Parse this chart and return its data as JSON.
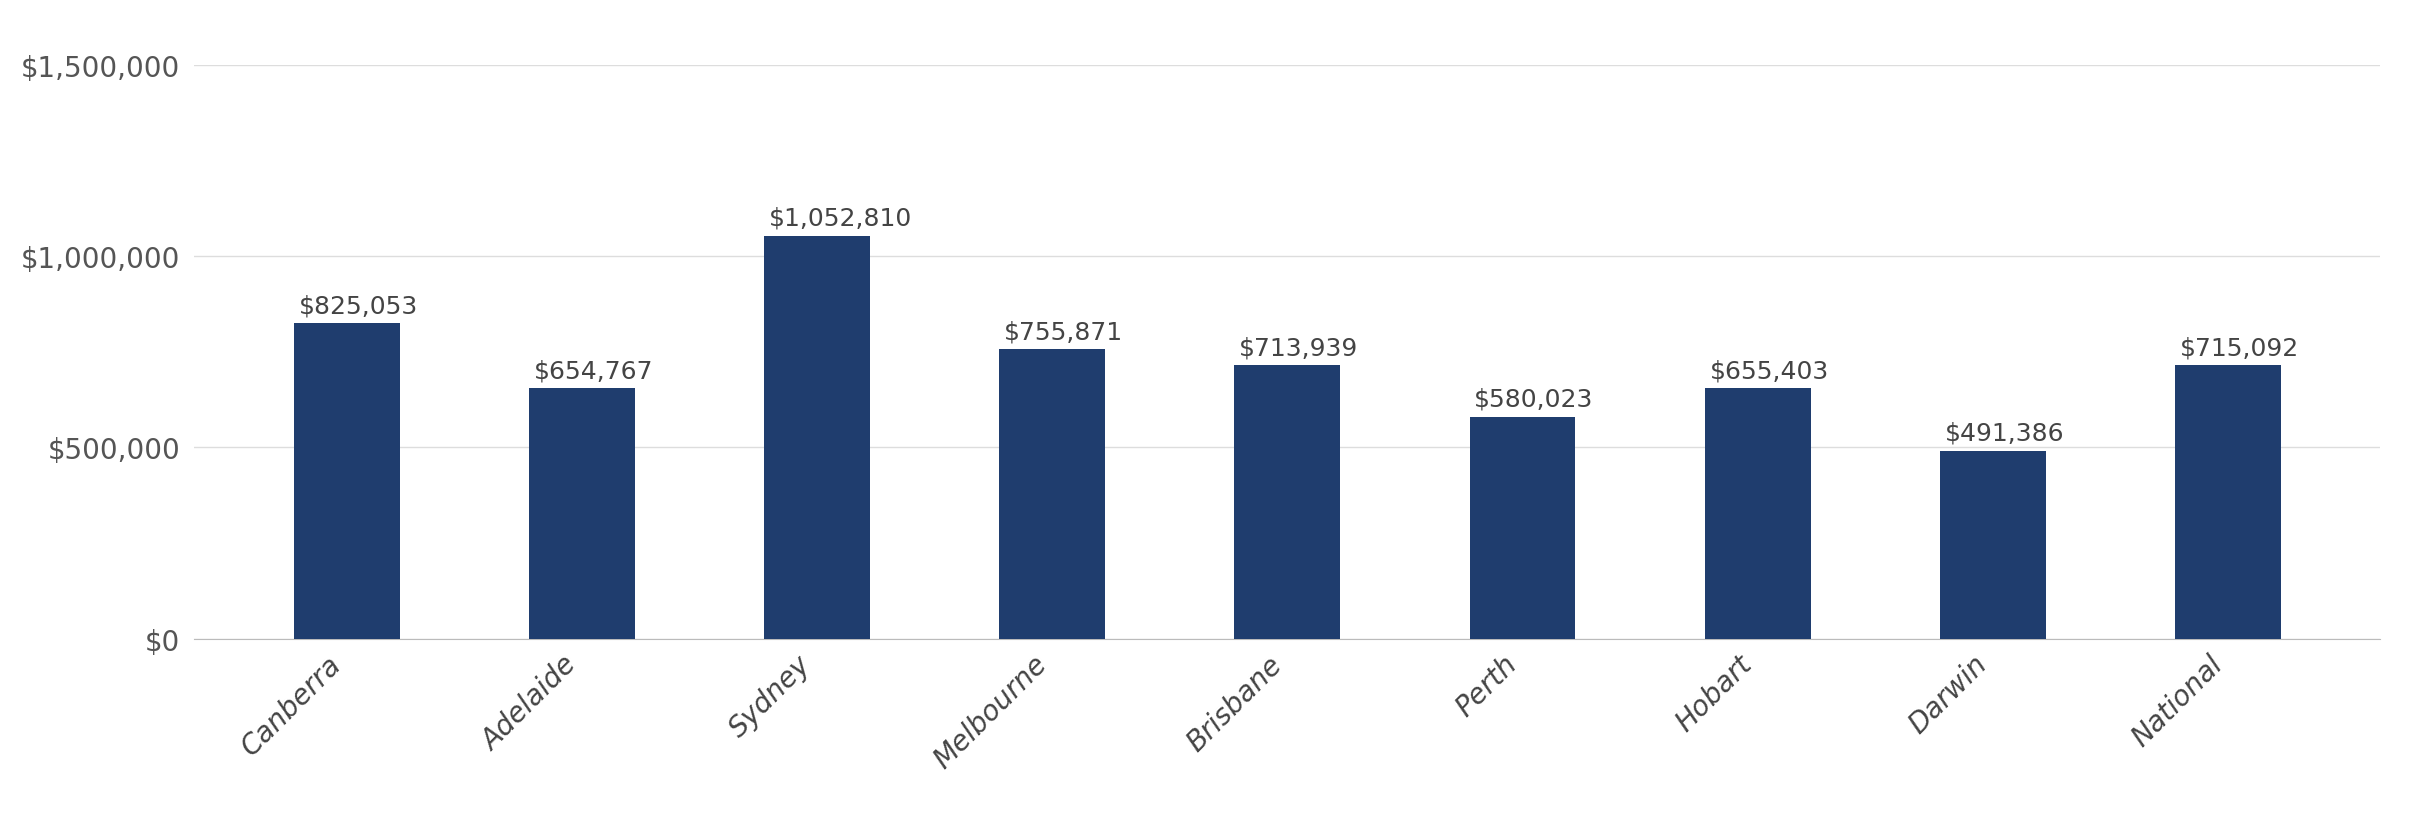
{
  "categories": [
    "Canberra",
    "Adelaide",
    "Sydney",
    "Melbourne",
    "Brisbane",
    "Perth",
    "Hobart",
    "Darwin",
    "National"
  ],
  "values": [
    825053,
    654767,
    1052810,
    755871,
    713939,
    580023,
    655403,
    491386,
    715092
  ],
  "bar_color": "#1f3d6e",
  "background_color": "#ffffff",
  "ylim": [
    0,
    1500000
  ],
  "yticks": [
    0,
    500000,
    1000000,
    1500000
  ],
  "ytick_labels": [
    "$0",
    "$500,000",
    "$1,000,000",
    "$1,500,000"
  ],
  "value_labels": [
    "$825,053",
    "$654,767",
    "$1,052,810",
    "$755,871",
    "$713,939",
    "$580,023",
    "$655,403",
    "$491,386",
    "$715,092"
  ],
  "bar_width": 0.45,
  "tick_fontsize": 20,
  "value_label_fontsize": 18,
  "grid_color": "#dddddd",
  "label_color": "#555555",
  "value_label_color": "#444444"
}
